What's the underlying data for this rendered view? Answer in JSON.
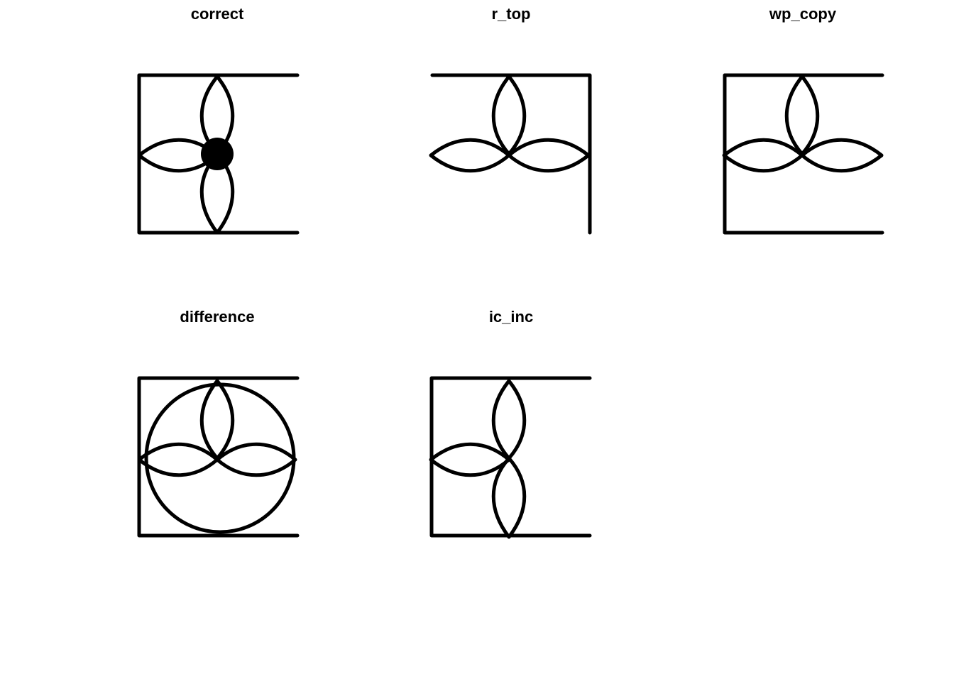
{
  "panels": [
    {
      "id": "correct",
      "title": "correct"
    },
    {
      "id": "r_top",
      "title": "r_top"
    },
    {
      "id": "wp_copy",
      "title": "wp_copy"
    },
    {
      "id": "difference",
      "title": "difference"
    },
    {
      "id": "ic_inc",
      "title": "ic_inc"
    }
  ],
  "colors": {
    "ink": "#000000",
    "background": "#ffffff"
  }
}
